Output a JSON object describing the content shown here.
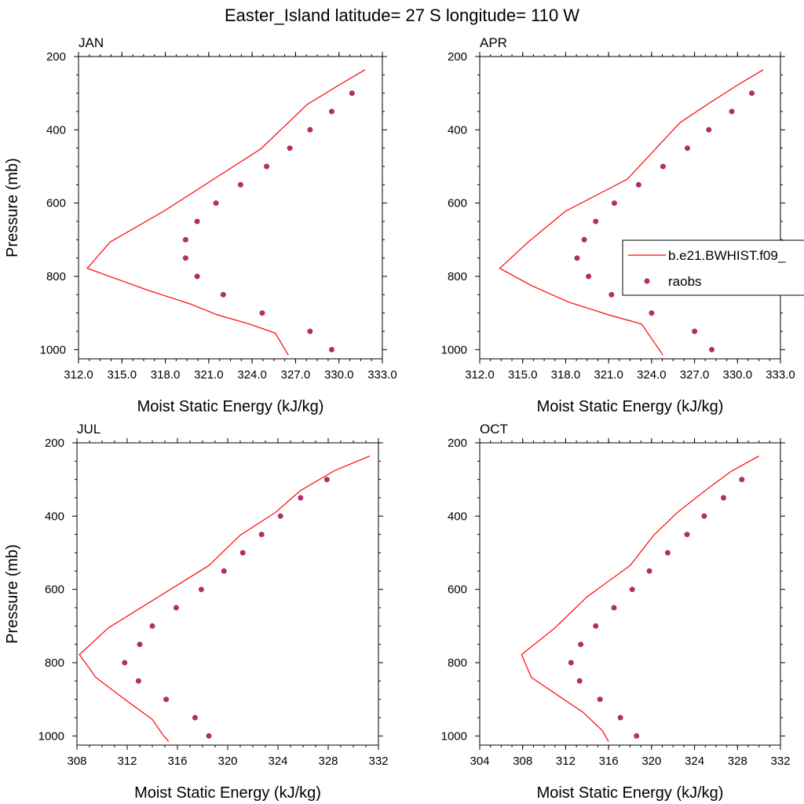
{
  "title": "Easter_Island  latitude= 27 S longitude= 110 W",
  "legend": {
    "placement": "right of APR panel",
    "entries": [
      {
        "label": "b.e21.BWHIST.f09_",
        "style": "line",
        "color": "#ff0000"
      },
      {
        "label": "raobs",
        "style": "marker",
        "color": "#b03060"
      }
    ]
  },
  "colors": {
    "model": "#ff0000",
    "obs": "#b03060"
  },
  "chart_data": [
    {
      "type": "line",
      "panel": "JAN",
      "xlabel": "Moist Static Energy (kJ/kg)",
      "ylabel": "Pressure (mb)",
      "xlim": [
        312,
        333
      ],
      "ylim": [
        1025,
        200
      ],
      "xticks": [
        "312.0",
        "315.0",
        "318.0",
        "321.0",
        "324.0",
        "327.0",
        "330.0",
        "333.0"
      ],
      "yticks": [
        "200",
        "400",
        "600",
        "800",
        "1000"
      ],
      "model": {
        "x": [
          331.8,
          330.0,
          327.8,
          324.6,
          317.9,
          314.2,
          312.6,
          316.8,
          319.7,
          321.6,
          323.8,
          325.6,
          326.5
        ],
        "y": [
          236,
          278,
          331,
          452,
          622,
          706,
          778,
          838,
          875,
          905,
          930,
          955,
          1015
        ]
      },
      "obs": {
        "x": [
          330.9,
          329.5,
          328.0,
          326.6,
          325.0,
          323.2,
          321.5,
          320.2,
          319.4,
          319.4,
          320.2,
          322.0,
          324.7,
          328.0,
          329.5
        ],
        "y": [
          300,
          350,
          400,
          450,
          500,
          550,
          600,
          650,
          700,
          750,
          800,
          850,
          900,
          950,
          1000
        ]
      }
    },
    {
      "type": "line",
      "panel": "APR",
      "xlabel": "Moist Static Energy (kJ/kg)",
      "ylabel": "",
      "xlim": [
        312,
        333
      ],
      "ylim": [
        1025,
        200
      ],
      "xticks": [
        "312.0",
        "315.0",
        "318.0",
        "321.0",
        "324.0",
        "327.0",
        "330.0",
        "333.0"
      ],
      "yticks": [
        "200",
        "400",
        "600",
        "800",
        "1000"
      ],
      "model": {
        "x": [
          331.8,
          330.0,
          328.0,
          326.0,
          322.3,
          318.0,
          315.4,
          313.4,
          315.6,
          318.2,
          321.0,
          323.3,
          324.8
        ],
        "y": [
          236,
          278,
          328,
          380,
          535,
          622,
          706,
          778,
          825,
          870,
          905,
          930,
          1015
        ]
      },
      "obs": {
        "x": [
          331.0,
          329.6,
          328.0,
          326.5,
          324.8,
          323.1,
          321.4,
          320.1,
          319.3,
          318.8,
          319.6,
          321.2,
          324.0,
          327.0,
          328.2
        ],
        "y": [
          300,
          350,
          400,
          450,
          500,
          550,
          600,
          650,
          700,
          750,
          800,
          850,
          900,
          950,
          1000
        ]
      }
    },
    {
      "type": "line",
      "panel": "JUL",
      "xlabel": "Moist Static Energy (kJ/kg)",
      "ylabel": "Pressure (mb)",
      "xlim": [
        308,
        332
      ],
      "ylim": [
        1025,
        200
      ],
      "xticks": [
        "308",
        "312",
        "316",
        "320",
        "324",
        "328",
        "332"
      ],
      "yticks": [
        "200",
        "400",
        "600",
        "800",
        "1000"
      ],
      "model": {
        "x": [
          331.3,
          328.5,
          325.8,
          323.8,
          321.0,
          318.5,
          314.5,
          310.5,
          308.2,
          309.5,
          312.0,
          314.0,
          314.8,
          315.3
        ],
        "y": [
          236,
          276,
          330,
          390,
          452,
          535,
          620,
          705,
          778,
          840,
          905,
          955,
          995,
          1015
        ]
      },
      "obs": {
        "x": [
          327.9,
          325.8,
          324.2,
          322.7,
          321.2,
          319.7,
          317.9,
          315.9,
          314.0,
          313.0,
          311.8,
          312.9,
          315.1,
          317.4,
          318.5
        ],
        "y": [
          300,
          350,
          400,
          450,
          500,
          550,
          600,
          650,
          700,
          750,
          800,
          850,
          900,
          950,
          1000
        ]
      }
    },
    {
      "type": "line",
      "panel": "OCT",
      "xlabel": "Moist Static Energy (kJ/kg)",
      "ylabel": "",
      "xlim": [
        304,
        332
      ],
      "ylim": [
        1025,
        200
      ],
      "xticks": [
        "304",
        "308",
        "312",
        "316",
        "320",
        "324",
        "328",
        "332"
      ],
      "yticks": [
        "200",
        "400",
        "600",
        "800",
        "1000"
      ],
      "model": {
        "x": [
          330.0,
          327.4,
          325.0,
          322.4,
          320.2,
          318.0,
          314.0,
          311.0,
          307.9,
          308.8,
          310.8,
          313.6,
          315.4,
          316.0
        ],
        "y": [
          236,
          278,
          330,
          390,
          452,
          535,
          620,
          705,
          778,
          840,
          880,
          935,
          985,
          1015
        ]
      },
      "obs": {
        "x": [
          328.4,
          326.7,
          324.9,
          323.3,
          321.5,
          319.8,
          318.2,
          316.5,
          314.8,
          313.4,
          312.5,
          313.3,
          315.2,
          317.1,
          318.6
        ],
        "y": [
          300,
          350,
          400,
          450,
          500,
          550,
          600,
          650,
          700,
          750,
          800,
          850,
          900,
          950,
          1000
        ]
      }
    }
  ]
}
